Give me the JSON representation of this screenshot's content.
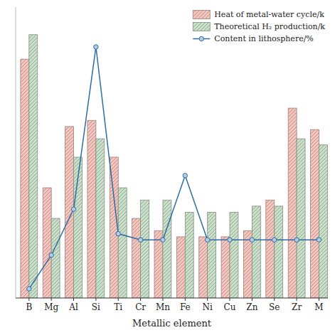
{
  "chart_data": {
    "type": "bar",
    "xlabel": "Metallic element",
    "categories": [
      "B",
      "Mg",
      "Al",
      "Si",
      "Ti",
      "Cr",
      "Mn",
      "Fe",
      "Ni",
      "Cu",
      "Zn",
      "Se",
      "Zr",
      "M"
    ],
    "series": [
      {
        "name": "Heat of metal-water cycle/k",
        "type": "bar",
        "color": "#f5c4bc",
        "values": [
          0.78,
          0.36,
          0.56,
          0.58,
          0.46,
          0.26,
          0.22,
          0.2,
          0.2,
          0.2,
          0.22,
          0.32,
          0.62,
          0.55
        ]
      },
      {
        "name": "Theoretical H₂ production/k",
        "type": "bar",
        "color": "#c8dfc8",
        "values": [
          0.86,
          0.26,
          0.46,
          0.52,
          0.36,
          0.32,
          0.32,
          0.28,
          0.28,
          0.28,
          0.3,
          0.3,
          0.52,
          0.5
        ]
      },
      {
        "name": "Content in lithosphere/%",
        "type": "line",
        "color": "#2e6da4",
        "marker": "circle",
        "values": [
          0.03,
          0.14,
          0.29,
          0.82,
          0.21,
          0.19,
          0.19,
          0.4,
          0.19,
          0.19,
          0.19,
          0.19,
          0.19,
          0.19
        ]
      }
    ],
    "ylim": [
      0,
      0.95
    ],
    "legend": "upper right",
    "tick_labels": "x",
    "grid": false
  }
}
